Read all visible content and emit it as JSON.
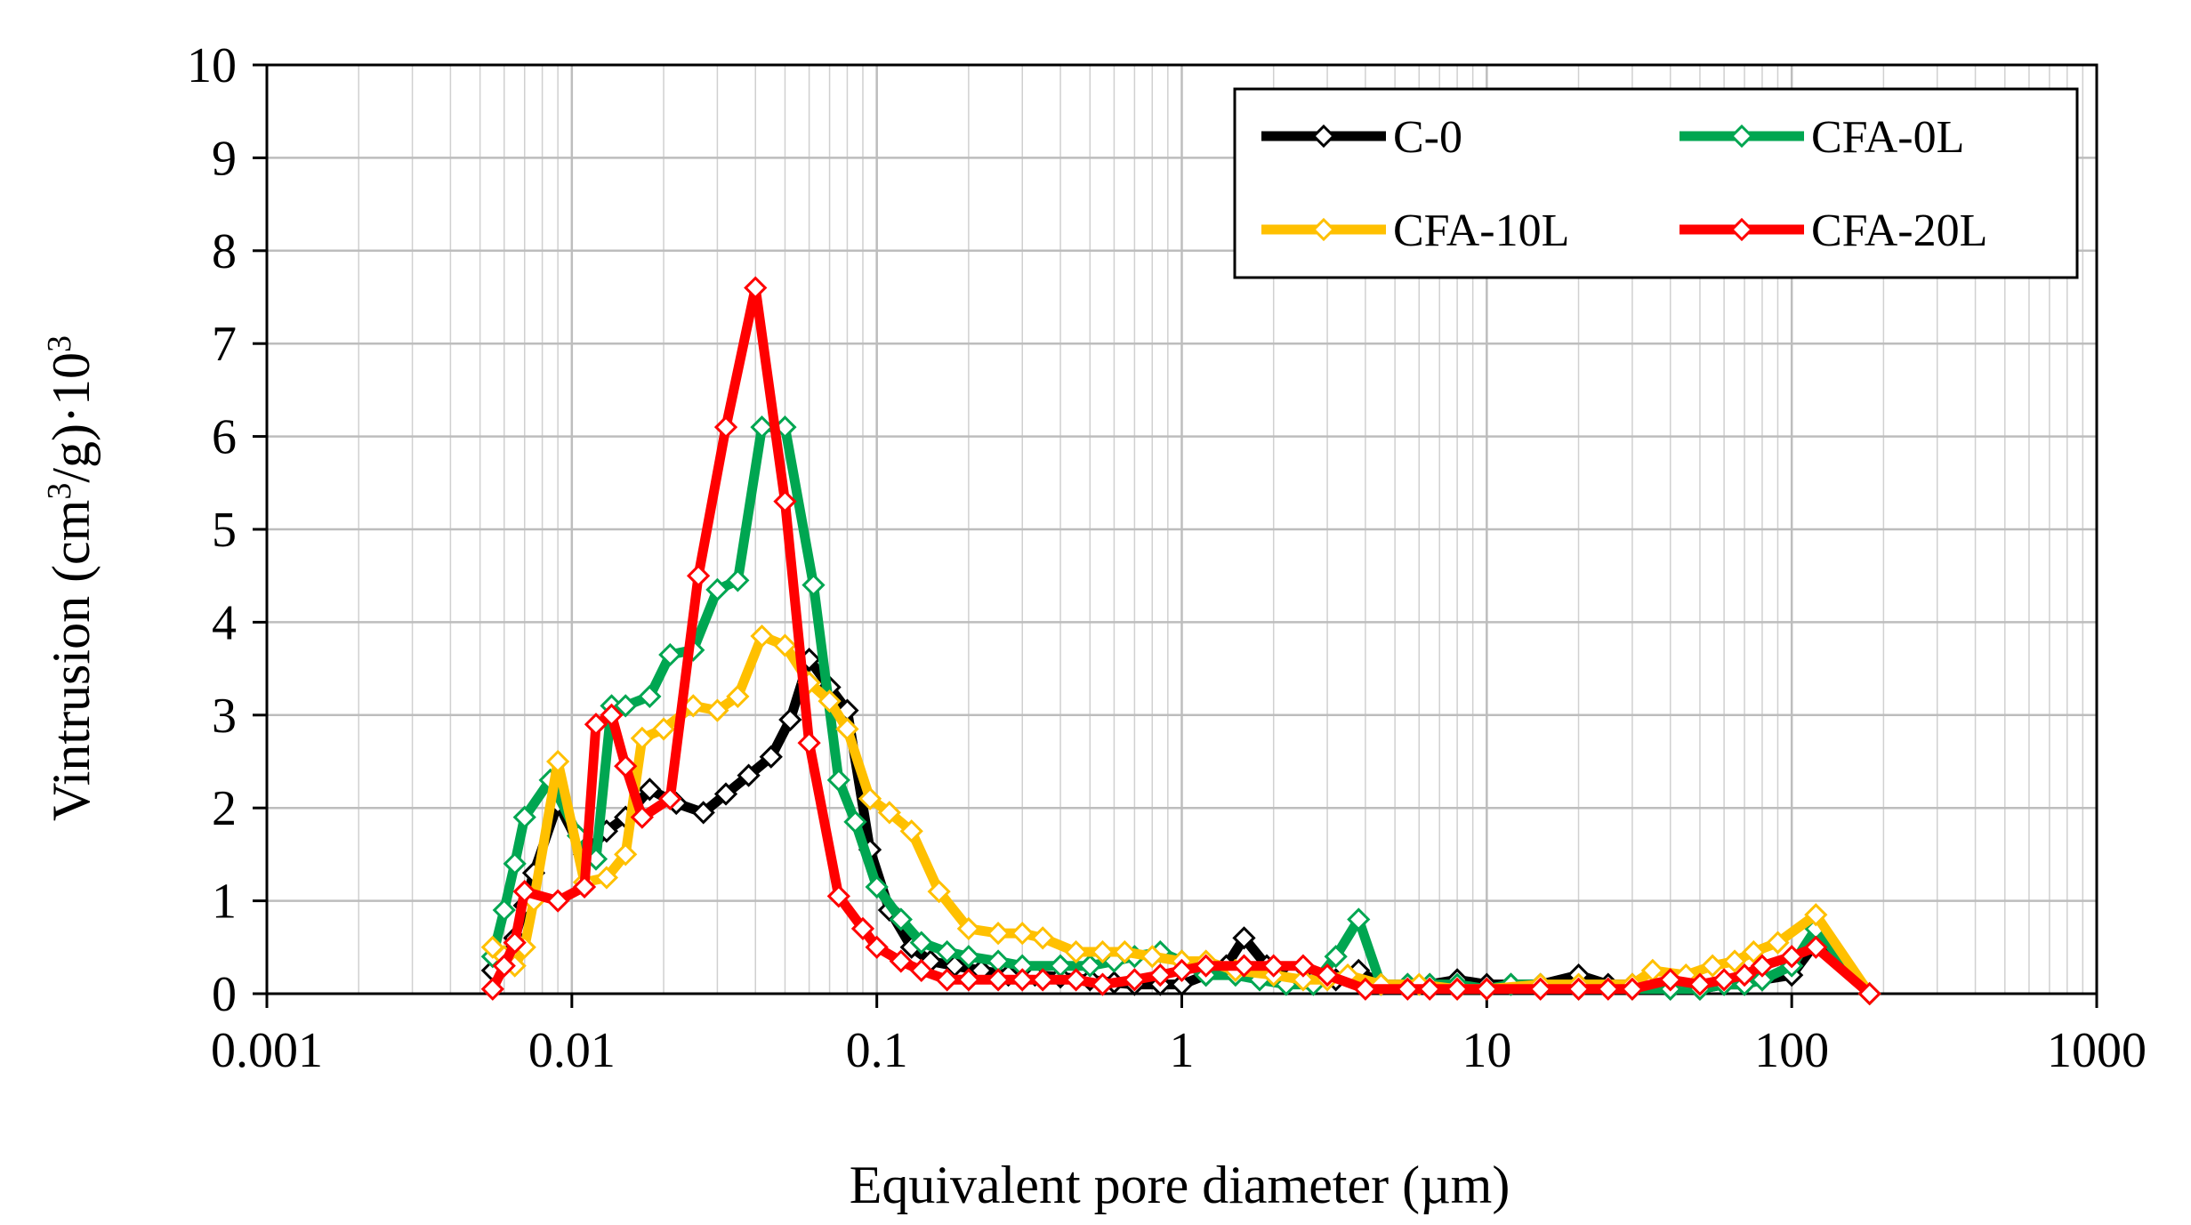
{
  "chart_data": {
    "type": "line",
    "title": "",
    "xlabel": "Equivalent pore diameter (µm)",
    "ylabel": {
      "prefix": "Vintrusion (cm",
      "sup1": "3",
      "mid": "/g)·10",
      "sup2": "3"
    },
    "x_scale": "log",
    "xlim": [
      0.001,
      1000
    ],
    "ylim": [
      0,
      10
    ],
    "x_ticks": [
      0.001,
      0.01,
      0.1,
      1,
      10,
      100,
      1000
    ],
    "x_tick_labels": [
      "0.001",
      "0.01",
      "0.1",
      "1",
      "10",
      "100",
      "1000"
    ],
    "y_ticks": [
      0,
      1,
      2,
      3,
      4,
      5,
      6,
      7,
      8,
      9,
      10
    ],
    "y_tick_labels": [
      "0",
      "1",
      "2",
      "3",
      "4",
      "5",
      "6",
      "7",
      "8",
      "9",
      "10"
    ],
    "grid": true,
    "legend_position": "top-right",
    "series": [
      {
        "name": "C-0",
        "color": "#000000",
        "x": [
          0.0055,
          0.006,
          0.0065,
          0.007,
          0.0075,
          0.009,
          0.011,
          0.013,
          0.015,
          0.018,
          0.022,
          0.027,
          0.032,
          0.038,
          0.045,
          0.052,
          0.06,
          0.07,
          0.08,
          0.095,
          0.11,
          0.13,
          0.15,
          0.18,
          0.22,
          0.27,
          0.33,
          0.4,
          0.5,
          0.6,
          0.7,
          0.85,
          1.0,
          1.2,
          1.4,
          1.6,
          1.9,
          2.3,
          2.7,
          3.2,
          3.8,
          4.5,
          5.5,
          6.5,
          8,
          10,
          12,
          15,
          20,
          25,
          30,
          40,
          50,
          60,
          70,
          80,
          100,
          120,
          180
        ],
        "values": [
          0.25,
          0.35,
          0.6,
          0.95,
          1.3,
          2.05,
          1.5,
          1.75,
          1.9,
          2.2,
          2.05,
          1.95,
          2.15,
          2.35,
          2.55,
          2.95,
          3.6,
          3.3,
          3.05,
          1.55,
          0.9,
          0.5,
          0.35,
          0.3,
          0.25,
          0.2,
          0.2,
          0.18,
          0.15,
          0.12,
          0.1,
          0.1,
          0.1,
          0.2,
          0.3,
          0.6,
          0.3,
          0.2,
          0.15,
          0.15,
          0.25,
          0.1,
          0.1,
          0.1,
          0.15,
          0.1,
          0.1,
          0.1,
          0.2,
          0.1,
          0.1,
          0.05,
          0.05,
          0.1,
          0.1,
          0.15,
          0.2,
          0.55,
          0.0
        ]
      },
      {
        "name": "CFA-0L",
        "color": "#00a651",
        "x": [
          0.0055,
          0.006,
          0.0065,
          0.007,
          0.0085,
          0.0105,
          0.012,
          0.0135,
          0.015,
          0.018,
          0.021,
          0.025,
          0.03,
          0.035,
          0.042,
          0.05,
          0.062,
          0.075,
          0.085,
          0.1,
          0.12,
          0.14,
          0.17,
          0.2,
          0.25,
          0.3,
          0.4,
          0.5,
          0.6,
          0.7,
          0.85,
          1.0,
          1.2,
          1.5,
          1.8,
          2.2,
          2.7,
          3.2,
          3.8,
          4.5,
          5.5,
          6.5,
          8,
          10,
          12,
          15,
          20,
          30,
          40,
          50,
          60,
          70,
          80,
          100,
          120,
          180
        ],
        "values": [
          0.4,
          0.9,
          1.4,
          1.9,
          2.3,
          1.7,
          1.45,
          3.1,
          3.1,
          3.2,
          3.65,
          3.7,
          4.35,
          4.45,
          6.1,
          6.1,
          4.4,
          2.3,
          1.85,
          1.15,
          0.8,
          0.55,
          0.45,
          0.4,
          0.35,
          0.3,
          0.3,
          0.3,
          0.35,
          0.4,
          0.45,
          0.35,
          0.2,
          0.2,
          0.15,
          0.1,
          0.1,
          0.4,
          0.8,
          0.1,
          0.1,
          0.1,
          0.1,
          0.05,
          0.1,
          0.1,
          0.05,
          0.05,
          0.05,
          0.05,
          0.1,
          0.1,
          0.15,
          0.3,
          0.7,
          0.0
        ]
      },
      {
        "name": "CFA-10L",
        "color": "#ffc000",
        "x": [
          0.0055,
          0.006,
          0.0065,
          0.007,
          0.0075,
          0.009,
          0.011,
          0.013,
          0.015,
          0.017,
          0.02,
          0.025,
          0.03,
          0.035,
          0.042,
          0.05,
          0.06,
          0.07,
          0.08,
          0.095,
          0.11,
          0.13,
          0.16,
          0.2,
          0.25,
          0.3,
          0.35,
          0.45,
          0.55,
          0.65,
          0.8,
          1.0,
          1.2,
          1.5,
          2.0,
          2.5,
          3.0,
          3.5,
          4.5,
          6,
          8,
          10,
          15,
          20,
          30,
          35,
          45,
          55,
          65,
          75,
          90,
          120,
          180
        ],
        "values": [
          0.5,
          0.4,
          0.3,
          0.5,
          1.0,
          2.5,
          1.2,
          1.25,
          1.5,
          2.75,
          2.85,
          3.1,
          3.05,
          3.2,
          3.85,
          3.75,
          3.35,
          3.15,
          2.85,
          2.1,
          1.95,
          1.75,
          1.1,
          0.7,
          0.65,
          0.65,
          0.6,
          0.45,
          0.45,
          0.45,
          0.4,
          0.35,
          0.35,
          0.25,
          0.2,
          0.15,
          0.15,
          0.2,
          0.1,
          0.1,
          0.05,
          0.05,
          0.1,
          0.1,
          0.1,
          0.25,
          0.2,
          0.3,
          0.35,
          0.45,
          0.55,
          0.85,
          0.0
        ]
      },
      {
        "name": "CFA-20L",
        "color": "#ff0000",
        "x": [
          0.0055,
          0.006,
          0.0065,
          0.007,
          0.009,
          0.011,
          0.012,
          0.0135,
          0.015,
          0.017,
          0.021,
          0.026,
          0.032,
          0.04,
          0.05,
          0.06,
          0.075,
          0.09,
          0.1,
          0.12,
          0.14,
          0.17,
          0.2,
          0.25,
          0.3,
          0.35,
          0.45,
          0.55,
          0.7,
          0.85,
          1.0,
          1.2,
          1.6,
          2.0,
          2.5,
          3.0,
          4.0,
          5.5,
          6.5,
          8,
          10,
          15,
          20,
          25,
          30,
          40,
          50,
          60,
          70,
          80,
          100,
          120,
          180
        ],
        "values": [
          0.05,
          0.3,
          0.55,
          1.1,
          1.0,
          1.15,
          2.9,
          3.0,
          2.45,
          1.9,
          2.1,
          4.5,
          6.1,
          7.6,
          5.3,
          2.7,
          1.05,
          0.7,
          0.5,
          0.35,
          0.25,
          0.15,
          0.15,
          0.15,
          0.15,
          0.15,
          0.15,
          0.1,
          0.15,
          0.2,
          0.25,
          0.3,
          0.3,
          0.3,
          0.3,
          0.2,
          0.05,
          0.05,
          0.05,
          0.05,
          0.05,
          0.05,
          0.05,
          0.05,
          0.05,
          0.15,
          0.1,
          0.15,
          0.2,
          0.3,
          0.4,
          0.5,
          0.0
        ]
      }
    ]
  }
}
